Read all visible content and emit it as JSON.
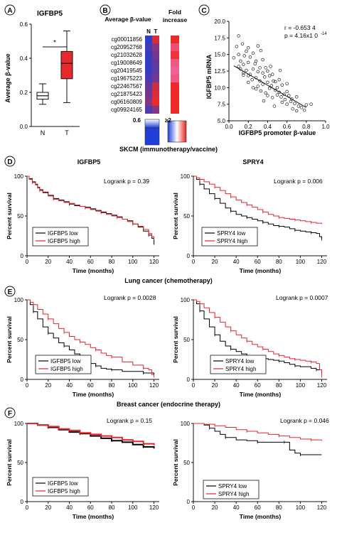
{
  "panels": {
    "A": {
      "letter": "A",
      "title": "IGFBP5",
      "ylabel": "Average β-value",
      "sig": "*",
      "yticks": [
        "0.0",
        "0.2",
        "0.4",
        "0.6"
      ],
      "categories": [
        "N",
        "T"
      ]
    },
    "B": {
      "letter": "B",
      "avg_title": "Average β-value",
      "fold_title_1": "Fold",
      "fold_title_2": "increase",
      "col_n": "N",
      "col_t": "T",
      "probes": [
        "cg00011856",
        "cg20952768",
        "cg21032628",
        "cg19008649",
        "cg20419545",
        "cg19675223",
        "cg22467567",
        "cg21875423",
        "cg06160809",
        "cg09924165"
      ],
      "scale_low": "0.6",
      "scale_high": "≥2"
    },
    "C": {
      "letter": "C",
      "ylabel": "IGFBP5 mRNA",
      "xlabel": "IGFBP5 promoter β-value",
      "stat_r": "r = -0.653 4",
      "stat_p": "p = 4.16x1 0",
      "stat_p_exp": "-14",
      "xticks": [
        "0.0",
        "0.2",
        "0.4",
        "0.6",
        "0.8",
        "1.0"
      ],
      "yticks": [
        "5.0",
        "7.5",
        "10.0",
        "12.5",
        "15.0",
        "17.5",
        "20.0"
      ]
    },
    "D": {
      "letter": "D",
      "section": "SKCM (immunotherapy/vaccine)",
      "left_title": "IGFBP5",
      "right_title": "SPRY4",
      "left_logrank": "Logrank p = 0.39",
      "right_logrank": "Logrank p = 0.006",
      "left_legend": [
        "IGFBP5 low",
        "IGFBP5 high"
      ],
      "right_legend": [
        "SPRY4 low",
        "SPRY4 high"
      ],
      "xticks": [
        "0",
        "20",
        "40",
        "60",
        "80",
        "100",
        "120"
      ]
    },
    "E": {
      "letter": "E",
      "section": "Lung cancer (chemotherapy)",
      "left_logrank": "Logrank p = 0.0028",
      "right_logrank": "Logrank p = 0.0007",
      "left_legend": [
        "IGFBP5 low",
        "IGFBP5 high"
      ],
      "right_legend": [
        "SPRY4 low",
        "SPRY4 high"
      ],
      "xticks": [
        "0",
        "20",
        "40",
        "60",
        "80",
        "100",
        "120"
      ]
    },
    "F": {
      "letter": "F",
      "section": "Breast cancer (endocrine therapy)",
      "left_logrank": "Logrank p = 0.15",
      "right_logrank": "Logrank p = 0.046",
      "left_legend": [
        "IGFBP5 low",
        "IGFBP5 high"
      ],
      "right_legend": [
        "SPRY4 low",
        "SPRY4 high"
      ],
      "xticks": [
        "0",
        "20",
        "40",
        "60",
        "80",
        "100",
        "120"
      ]
    }
  },
  "km_axis": {
    "ylabel": "Percent survival",
    "xlabel": "Time (months)",
    "yticks": [
      "0",
      "50",
      "100"
    ]
  },
  "colors": {
    "low": "#000000",
    "high": "#e8252b",
    "box": "#e8282a",
    "heat_blue": "#1f3fd6",
    "heat_red": "#ec2a2a",
    "heat_pink": "#f06aa6"
  },
  "chart_data": [
    {
      "type": "box",
      "panel": "A",
      "title": "IGFBP5",
      "ylabel": "Average β-value",
      "categories": [
        "N",
        "T"
      ],
      "ylim": [
        0,
        0.6
      ],
      "boxes": [
        {
          "name": "N",
          "min": 0.13,
          "q1": 0.16,
          "median": 0.18,
          "q3": 0.2,
          "max": 0.25
        },
        {
          "name": "T",
          "min": 0.14,
          "q1": 0.28,
          "median": 0.37,
          "q3": 0.44,
          "max": 0.56
        }
      ]
    },
    {
      "type": "heatmap",
      "panel": "B",
      "rows": [
        "cg00011856",
        "cg20952768",
        "cg21032628",
        "cg19008649",
        "cg20419545",
        "cg19675223",
        "cg22467567",
        "cg21875423",
        "cg06160809",
        "cg09924165"
      ],
      "columns": [
        "N",
        "T",
        "Fold increase"
      ],
      "values": [
        [
          0.05,
          0.55,
          2.0
        ],
        [
          0.1,
          0.3,
          1.6
        ],
        [
          0.08,
          0.25,
          1.9
        ],
        [
          0.08,
          0.2,
          1.5
        ],
        [
          0.08,
          0.18,
          1.4
        ],
        [
          0.12,
          0.25,
          1.5
        ],
        [
          0.2,
          0.5,
          2.0
        ],
        [
          0.25,
          0.55,
          2.0
        ],
        [
          0.3,
          0.6,
          2.0
        ],
        [
          0.15,
          0.3,
          2.0
        ]
      ]
    },
    {
      "type": "scatter",
      "panel": "C",
      "xlabel": "IGFBP5 promoter β-value",
      "ylabel": "IGFBP5 mRNA",
      "xlim": [
        0,
        1.0
      ],
      "ylim": [
        5,
        20
      ],
      "x": [
        0.05,
        0.08,
        0.1,
        0.1,
        0.12,
        0.12,
        0.14,
        0.15,
        0.15,
        0.16,
        0.18,
        0.18,
        0.2,
        0.2,
        0.2,
        0.22,
        0.22,
        0.24,
        0.25,
        0.25,
        0.25,
        0.27,
        0.28,
        0.28,
        0.3,
        0.3,
        0.3,
        0.32,
        0.32,
        0.33,
        0.35,
        0.35,
        0.35,
        0.37,
        0.38,
        0.38,
        0.4,
        0.4,
        0.4,
        0.42,
        0.42,
        0.44,
        0.45,
        0.45,
        0.46,
        0.48,
        0.48,
        0.5,
        0.5,
        0.52,
        0.52,
        0.54,
        0.55,
        0.55,
        0.57,
        0.58,
        0.6,
        0.6,
        0.62,
        0.64,
        0.65,
        0.66,
        0.68,
        0.7,
        0.7,
        0.72,
        0.75,
        0.78,
        0.8,
        0.85,
        0.1,
        0.15,
        0.2,
        0.28,
        0.33,
        0.36,
        0.43,
        0.47,
        0.53,
        0.6
      ],
      "y": [
        14.5,
        16.2,
        13.2,
        15.0,
        12.8,
        14.0,
        16.6,
        11.9,
        13.5,
        14.8,
        12.6,
        15.5,
        10.8,
        13.8,
        16.0,
        12.0,
        14.6,
        11.2,
        10.0,
        12.8,
        15.2,
        13.6,
        11.5,
        14.0,
        10.2,
        12.4,
        16.3,
        11.0,
        13.0,
        9.5,
        10.5,
        12.2,
        14.2,
        11.6,
        9.2,
        13.0,
        8.8,
        10.8,
        12.5,
        9.9,
        11.8,
        10.3,
        8.5,
        12.0,
        11.0,
        9.6,
        10.9,
        8.9,
        10.0,
        9.3,
        11.2,
        8.6,
        7.8,
        10.4,
        9.0,
        8.2,
        9.4,
        7.5,
        8.8,
        7.9,
        8.3,
        6.8,
        7.6,
        8.6,
        6.5,
        7.2,
        7.0,
        6.6,
        7.4,
        7.5,
        17.8,
        12.2,
        11.8,
        9.8,
        15.6,
        8.0,
        13.2,
        7.2,
        12.6,
        10.6
      ],
      "fit": {
        "x": [
          0.05,
          0.8
        ],
        "y": [
          13.3,
          7.0
        ]
      },
      "annotations": [
        "r = -0.653 4",
        "p = 4.16x1 0-14"
      ]
    },
    {
      "type": "line",
      "panel": "D-left",
      "title": "IGFBP5",
      "xlabel": "Time (months)",
      "ylabel": "Percent survival",
      "xlim": [
        0,
        125
      ],
      "ylim": [
        0,
        100
      ],
      "series": [
        {
          "name": "IGFBP5 low",
          "x": [
            0,
            2,
            5,
            8,
            10,
            12,
            15,
            20,
            25,
            30,
            35,
            40,
            45,
            50,
            55,
            60,
            65,
            70,
            75,
            80,
            85,
            90,
            95,
            100,
            105,
            110,
            115,
            118,
            120
          ],
          "y": [
            100,
            97,
            93,
            90,
            86,
            83,
            80,
            76,
            72,
            70,
            68,
            65,
            63,
            62,
            61,
            59,
            57,
            55,
            53,
            51,
            49,
            46,
            44,
            40,
            36,
            31,
            26,
            22,
            14
          ]
        },
        {
          "name": "IGFBP5 high",
          "x": [
            0,
            2,
            5,
            8,
            10,
            12,
            15,
            20,
            25,
            30,
            35,
            40,
            45,
            50,
            55,
            60,
            65,
            70,
            75,
            80,
            85,
            90,
            95,
            100,
            105,
            110,
            115,
            118,
            120
          ],
          "y": [
            100,
            96,
            92,
            89,
            85,
            82,
            79,
            75,
            71,
            69,
            67,
            66,
            64,
            62,
            60,
            58,
            56,
            54,
            52,
            50,
            48,
            46,
            43,
            40,
            37,
            33,
            28,
            24,
            20
          ]
        }
      ]
    },
    {
      "type": "line",
      "panel": "D-right",
      "title": "SPRY4",
      "xlabel": "Time (months)",
      "ylabel": "Percent survival",
      "xlim": [
        0,
        125
      ],
      "ylim": [
        0,
        100
      ],
      "series": [
        {
          "name": "SPRY4 low",
          "x": [
            0,
            3,
            6,
            10,
            15,
            20,
            25,
            30,
            35,
            40,
            45,
            50,
            55,
            60,
            65,
            70,
            75,
            80,
            85,
            90,
            95,
            100,
            105,
            110,
            115,
            118,
            120
          ],
          "y": [
            100,
            96,
            90,
            84,
            78,
            72,
            66,
            60,
            56,
            52,
            50,
            48,
            46,
            44,
            42,
            40,
            38,
            37,
            36,
            34,
            32,
            31,
            30,
            29,
            28,
            24,
            21
          ]
        },
        {
          "name": "SPRY4 high",
          "x": [
            0,
            3,
            6,
            10,
            15,
            20,
            25,
            30,
            35,
            40,
            45,
            50,
            55,
            60,
            65,
            70,
            75,
            80,
            85,
            90,
            95,
            100,
            105,
            110,
            115,
            120
          ],
          "y": [
            100,
            98,
            96,
            93,
            90,
            86,
            82,
            78,
            74,
            70,
            67,
            64,
            61,
            58,
            55,
            52,
            50,
            48,
            47,
            46,
            45,
            44,
            43,
            42,
            41,
            40
          ]
        }
      ]
    },
    {
      "type": "line",
      "panel": "E-left",
      "xlabel": "Time (months)",
      "ylabel": "Percent survival",
      "xlim": [
        0,
        125
      ],
      "ylim": [
        0,
        100
      ],
      "series": [
        {
          "name": "IGFBP5 low",
          "x": [
            0,
            3,
            6,
            10,
            15,
            20,
            25,
            30,
            35,
            40,
            45,
            50,
            55,
            60,
            65,
            70,
            75,
            80,
            90,
            100,
            110,
            120
          ],
          "y": [
            100,
            94,
            85,
            76,
            66,
            58,
            52,
            46,
            42,
            37,
            32,
            27,
            23,
            20,
            17,
            14,
            13,
            12,
            10,
            10,
            8,
            6
          ]
        },
        {
          "name": "IGFBP5 high",
          "x": [
            0,
            3,
            6,
            10,
            15,
            20,
            25,
            30,
            35,
            40,
            45,
            50,
            55,
            60,
            65,
            70,
            75,
            80,
            90,
            100,
            110,
            115,
            118,
            120
          ],
          "y": [
            100,
            97,
            94,
            88,
            82,
            76,
            70,
            64,
            59,
            54,
            50,
            47,
            44,
            40,
            37,
            33,
            30,
            28,
            22,
            18,
            14,
            12,
            6,
            4
          ]
        }
      ]
    },
    {
      "type": "line",
      "panel": "E-right",
      "xlabel": "Time (months)",
      "ylabel": "Percent survival",
      "xlim": [
        0,
        125
      ],
      "ylim": [
        0,
        100
      ],
      "series": [
        {
          "name": "SPRY4 low",
          "x": [
            0,
            3,
            6,
            10,
            15,
            20,
            25,
            30,
            35,
            40,
            45,
            50,
            55,
            60,
            65,
            70,
            75,
            80,
            85,
            90,
            95,
            100,
            110,
            115,
            120
          ],
          "y": [
            100,
            95,
            86,
            76,
            66,
            56,
            48,
            42,
            38,
            35,
            32,
            30,
            28,
            27,
            26,
            25,
            24,
            23,
            21,
            19,
            17,
            16,
            14,
            12,
            8
          ]
        },
        {
          "name": "SPRY4 high",
          "x": [
            0,
            3,
            6,
            10,
            15,
            20,
            25,
            30,
            35,
            40,
            45,
            50,
            55,
            60,
            65,
            70,
            75,
            80,
            85,
            90,
            95,
            100,
            105,
            110,
            115,
            118,
            120
          ],
          "y": [
            100,
            98,
            95,
            90,
            84,
            78,
            72,
            66,
            61,
            56,
            52,
            48,
            44,
            41,
            38,
            35,
            32,
            30,
            28,
            26,
            25,
            24,
            23,
            22,
            20,
            12,
            4
          ]
        }
      ]
    },
    {
      "type": "line",
      "panel": "F-left",
      "xlabel": "Time (months)",
      "ylabel": "Percent survival",
      "xlim": [
        0,
        125
      ],
      "ylim": [
        0,
        100
      ],
      "series": [
        {
          "name": "IGFBP5 low",
          "x": [
            0,
            10,
            20,
            30,
            40,
            50,
            60,
            70,
            80,
            90,
            100,
            110,
            120
          ],
          "y": [
            100,
            98,
            95,
            92,
            89,
            87,
            84,
            81,
            78,
            76,
            73,
            70,
            68
          ]
        },
        {
          "name": "IGFBP5 high",
          "x": [
            0,
            10,
            20,
            30,
            40,
            50,
            60,
            70,
            80,
            90,
            100,
            110,
            120
          ],
          "y": [
            100,
            98,
            96,
            93,
            91,
            88,
            86,
            84,
            82,
            79,
            77,
            74,
            72
          ]
        }
      ]
    },
    {
      "type": "line",
      "panel": "F-right",
      "xlabel": "Time (months)",
      "ylabel": "Percent survival",
      "xlim": [
        0,
        125
      ],
      "ylim": [
        0,
        100
      ],
      "series": [
        {
          "name": "SPRY4 low",
          "x": [
            0,
            10,
            15,
            20,
            25,
            30,
            40,
            50,
            60,
            70,
            80,
            85,
            90,
            95,
            100,
            110,
            120
          ],
          "y": [
            100,
            98,
            94,
            90,
            86,
            82,
            79,
            78,
            76,
            76,
            76,
            76,
            66,
            62,
            60,
            60,
            60
          ]
        },
        {
          "name": "SPRY4 high",
          "x": [
            0,
            10,
            20,
            30,
            40,
            50,
            60,
            70,
            80,
            90,
            100,
            110,
            120
          ],
          "y": [
            100,
            99,
            97,
            95,
            92,
            90,
            88,
            86,
            84,
            82,
            80,
            79,
            78
          ]
        }
      ]
    }
  ]
}
